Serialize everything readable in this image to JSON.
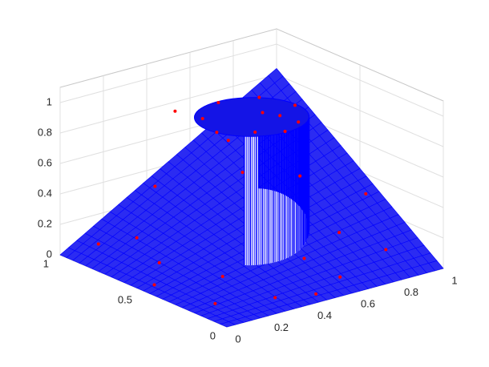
{
  "chart_data": {
    "type": "surface3d",
    "xlim": [
      0,
      1
    ],
    "ylim": [
      0,
      1
    ],
    "zlim": [
      0,
      1.1
    ],
    "xticks": [
      0,
      0.2,
      0.4,
      0.6,
      0.8,
      1
    ],
    "yticks": [
      0,
      0.5,
      1
    ],
    "zticks": [
      0,
      0.2,
      0.4,
      0.6,
      0.8,
      1
    ],
    "grid": true,
    "surface_color": "#0000ff",
    "series": [
      {
        "color": "#ff0000",
        "x": [
          0.1,
          0.3,
          0.6,
          0.85,
          0.95,
          0.8,
          0.15,
          0.1,
          0.4,
          0.7,
          0.9,
          0.25,
          0.55,
          0.2,
          0.75,
          0.05,
          0.45,
          0.65,
          0.5,
          0.6,
          0.7,
          0.5,
          0.35,
          0.3,
          0.4,
          0.65,
          0.55,
          0.3
        ],
        "y": [
          0.2,
          0.1,
          0.1,
          0.15,
          0.4,
          0.6,
          0.6,
          0.9,
          0.95,
          0.9,
          0.85,
          0.35,
          0.25,
          0.8,
          0.3,
          0.5,
          0.05,
          0.75,
          0.3,
          0.35,
          0.5,
          0.7,
          0.6,
          0.45,
          0.35,
          0.65,
          0.5,
          0.7
        ],
        "z": [
          0.02,
          0.03,
          0.05,
          0.11,
          0.32,
          0.4,
          0.08,
          0.08,
          0.32,
          0.53,
          0.64,
          0.07,
          0.12,
          0.13,
          0.19,
          0.02,
          0.02,
          0.41,
          0.95,
          0.95,
          0.95,
          0.95,
          0.95,
          0.95,
          0.96,
          0.95,
          0.96,
          0.97
        ]
      }
    ]
  }
}
